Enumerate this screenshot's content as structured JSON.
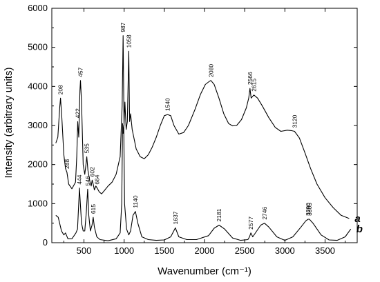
{
  "chart_data": {
    "type": "line",
    "xlabel": "Wavenumber (cm⁻¹)",
    "ylabel": "Intensity (arbitrary units)",
    "xlim": [
      100,
      3900
    ],
    "ylim": [
      0,
      6000
    ],
    "x_ticks": [
      500,
      1000,
      1500,
      2000,
      2500,
      3000,
      3500
    ],
    "y_ticks": [
      0,
      1000,
      2000,
      3000,
      4000,
      5000,
      6000
    ],
    "grid": false,
    "series": [
      {
        "name": "a",
        "points": [
          [
            150,
            2550
          ],
          [
            175,
            2700
          ],
          [
            200,
            3500
          ],
          [
            208,
            3700
          ],
          [
            225,
            3200
          ],
          [
            250,
            2250
          ],
          [
            270,
            1900
          ],
          [
            288,
            1800
          ],
          [
            310,
            1500
          ],
          [
            350,
            1380
          ],
          [
            395,
            1550
          ],
          [
            410,
            2200
          ],
          [
            422,
            3100
          ],
          [
            435,
            2700
          ],
          [
            450,
            3900
          ],
          [
            457,
            4150
          ],
          [
            470,
            3600
          ],
          [
            490,
            2000
          ],
          [
            510,
            1750
          ],
          [
            525,
            2000
          ],
          [
            535,
            2200
          ],
          [
            550,
            1850
          ],
          [
            575,
            1550
          ],
          [
            590,
            1450
          ],
          [
            602,
            1600
          ],
          [
            615,
            1500
          ],
          [
            630,
            1350
          ],
          [
            648,
            1450
          ],
          [
            664,
            1400
          ],
          [
            690,
            1300
          ],
          [
            720,
            1250
          ],
          [
            760,
            1350
          ],
          [
            800,
            1450
          ],
          [
            850,
            1550
          ],
          [
            900,
            1750
          ],
          [
            950,
            2200
          ],
          [
            975,
            3500
          ],
          [
            987,
            5300
          ],
          [
            998,
            3000
          ],
          [
            1010,
            3600
          ],
          [
            1025,
            2900
          ],
          [
            1040,
            3100
          ],
          [
            1058,
            4900
          ],
          [
            1068,
            3100
          ],
          [
            1080,
            3300
          ],
          [
            1100,
            2900
          ],
          [
            1150,
            2400
          ],
          [
            1200,
            2200
          ],
          [
            1250,
            2150
          ],
          [
            1300,
            2250
          ],
          [
            1350,
            2450
          ],
          [
            1400,
            2700
          ],
          [
            1450,
            3000
          ],
          [
            1500,
            3250
          ],
          [
            1540,
            3280
          ],
          [
            1580,
            3250
          ],
          [
            1620,
            3000
          ],
          [
            1680,
            2780
          ],
          [
            1740,
            2820
          ],
          [
            1800,
            3000
          ],
          [
            1880,
            3400
          ],
          [
            1950,
            3800
          ],
          [
            2010,
            4050
          ],
          [
            2060,
            4130
          ],
          [
            2080,
            4150
          ],
          [
            2120,
            4050
          ],
          [
            2180,
            3700
          ],
          [
            2240,
            3300
          ],
          [
            2300,
            3050
          ],
          [
            2350,
            2990
          ],
          [
            2400,
            3000
          ],
          [
            2460,
            3150
          ],
          [
            2520,
            3450
          ],
          [
            2550,
            3700
          ],
          [
            2566,
            3950
          ],
          [
            2580,
            3700
          ],
          [
            2615,
            3780
          ],
          [
            2660,
            3700
          ],
          [
            2720,
            3500
          ],
          [
            2800,
            3200
          ],
          [
            2880,
            2950
          ],
          [
            2950,
            2850
          ],
          [
            3030,
            2880
          ],
          [
            3080,
            2870
          ],
          [
            3120,
            2850
          ],
          [
            3180,
            2680
          ],
          [
            3250,
            2300
          ],
          [
            3320,
            1900
          ],
          [
            3400,
            1500
          ],
          [
            3500,
            1150
          ],
          [
            3600,
            900
          ],
          [
            3700,
            700
          ],
          [
            3800,
            620
          ]
        ],
        "label_text": "a"
      },
      {
        "name": "b",
        "points": [
          [
            150,
            700
          ],
          [
            180,
            650
          ],
          [
            220,
            300
          ],
          [
            250,
            200
          ],
          [
            270,
            250
          ],
          [
            300,
            100
          ],
          [
            350,
            100
          ],
          [
            400,
            250
          ],
          [
            420,
            350
          ],
          [
            444,
            1400
          ],
          [
            455,
            1000
          ],
          [
            470,
            500
          ],
          [
            490,
            300
          ],
          [
            510,
            300
          ],
          [
            530,
            800
          ],
          [
            546,
            1370
          ],
          [
            560,
            700
          ],
          [
            580,
            300
          ],
          [
            600,
            450
          ],
          [
            615,
            650
          ],
          [
            630,
            400
          ],
          [
            660,
            150
          ],
          [
            700,
            80
          ],
          [
            800,
            50
          ],
          [
            900,
            100
          ],
          [
            950,
            250
          ],
          [
            970,
            1000
          ],
          [
            980,
            3050
          ],
          [
            987,
            2800
          ],
          [
            995,
            3000
          ],
          [
            1005,
            1000
          ],
          [
            1030,
            350
          ],
          [
            1058,
            200
          ],
          [
            1080,
            300
          ],
          [
            1110,
            700
          ],
          [
            1140,
            800
          ],
          [
            1170,
            500
          ],
          [
            1220,
            150
          ],
          [
            1300,
            80
          ],
          [
            1400,
            60
          ],
          [
            1500,
            70
          ],
          [
            1580,
            150
          ],
          [
            1637,
            380
          ],
          [
            1680,
            150
          ],
          [
            1780,
            80
          ],
          [
            1900,
            80
          ],
          [
            2050,
            180
          ],
          [
            2120,
            370
          ],
          [
            2181,
            450
          ],
          [
            2250,
            350
          ],
          [
            2350,
            120
          ],
          [
            2450,
            60
          ],
          [
            2540,
            80
          ],
          [
            2560,
            150
          ],
          [
            2577,
            250
          ],
          [
            2600,
            150
          ],
          [
            2650,
            300
          ],
          [
            2700,
            450
          ],
          [
            2746,
            500
          ],
          [
            2800,
            400
          ],
          [
            2900,
            150
          ],
          [
            3000,
            60
          ],
          [
            3100,
            150
          ],
          [
            3200,
            400
          ],
          [
            3260,
            560
          ],
          [
            3290,
            600
          ],
          [
            3305,
            600
          ],
          [
            3350,
            500
          ],
          [
            3450,
            200
          ],
          [
            3550,
            70
          ],
          [
            3650,
            60
          ],
          [
            3750,
            150
          ],
          [
            3820,
            350
          ]
        ],
        "label_text": "b"
      }
    ],
    "annotations_a": [
      {
        "x": 208,
        "text": "208"
      },
      {
        "x": 288,
        "text": "288"
      },
      {
        "x": 422,
        "text": "422"
      },
      {
        "x": 457,
        "text": "457"
      },
      {
        "x": 535,
        "text": "535"
      },
      {
        "x": 602,
        "text": "602"
      },
      {
        "x": 664,
        "text": "664"
      },
      {
        "x": 987,
        "text": "987"
      },
      {
        "x": 1058,
        "text": "1058"
      },
      {
        "x": 1540,
        "text": "1540"
      },
      {
        "x": 2080,
        "text": "2080"
      },
      {
        "x": 2566,
        "text": "2566"
      },
      {
        "x": 2615,
        "text": "2615"
      },
      {
        "x": 3120,
        "text": "3120"
      }
    ],
    "annotations_b": [
      {
        "x": 444,
        "text": "444"
      },
      {
        "x": 546,
        "text": "546"
      },
      {
        "x": 615,
        "text": "615"
      },
      {
        "x": 1140,
        "text": "1140"
      },
      {
        "x": 1637,
        "text": "1637"
      },
      {
        "x": 2181,
        "text": "2181"
      },
      {
        "x": 2577,
        "text": "2577"
      },
      {
        "x": 2746,
        "text": "2746"
      },
      {
        "x": 3290,
        "text": "3290"
      },
      {
        "x": 3305,
        "text": "3305"
      }
    ]
  }
}
